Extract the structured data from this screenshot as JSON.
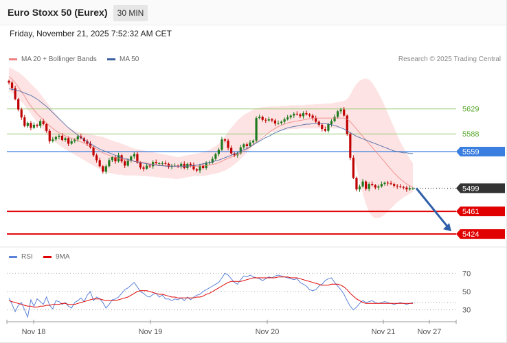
{
  "header": {
    "title": "Euro Stoxx 50 (Eurex)",
    "timeframe": "30 MIN",
    "datetime": "Friday, November 21, 2025 7:52:32 AM CET"
  },
  "legend": {
    "ma20": "MA 20 + Bollinger Bands",
    "ma50": "MA 50",
    "credit": "Research © 2025 Trading Central"
  },
  "rsi_legend": {
    "rsi": "RSI",
    "ma9": "9MA"
  },
  "colors": {
    "ma20": "#f08080",
    "bands_fill": "#fde0e0",
    "ma50": "#3a5fa0",
    "candle_up": "#1f7a1f",
    "candle_down": "#c00000",
    "resistance": "#7ab648",
    "pivot": "#3a7ee0",
    "support": "#e00000",
    "last_price": "#333333",
    "forecast_arrow": "#2f5fa8",
    "rsi": "#5a82d8",
    "rsi_ma": "#e00000"
  },
  "chart_data": {
    "type": "candlestick",
    "price_ylim": [
      5405,
      5695
    ],
    "x_ticks": [
      "Nov 18",
      "Nov 19",
      "Nov 20",
      "Nov 21",
      "Nov 27"
    ],
    "levels": [
      {
        "label": "5629",
        "value": 5629,
        "kind": "resistance"
      },
      {
        "label": "5588",
        "value": 5588,
        "kind": "resistance"
      },
      {
        "label": "5559",
        "value": 5559,
        "kind": "pivot"
      },
      {
        "label": "5499",
        "value": 5499,
        "kind": "last"
      },
      {
        "label": "5461",
        "value": 5461,
        "kind": "support"
      },
      {
        "label": "5424",
        "value": 5424,
        "kind": "support"
      }
    ],
    "forecast": {
      "from_value": 5499,
      "to_value": 5424
    },
    "close": [
      5672,
      5663,
      5645,
      5628,
      5615,
      5601,
      5606,
      5598,
      5603,
      5601,
      5609,
      5604,
      5593,
      5576,
      5579,
      5583,
      5585,
      5578,
      5581,
      5572,
      5576,
      5579,
      5584,
      5581,
      5576,
      5572,
      5566,
      5553,
      5545,
      5535,
      5526,
      5535,
      5545,
      5550,
      5543,
      5553,
      5543,
      5536,
      5544,
      5551,
      5555,
      5541,
      5533,
      5531,
      5536,
      5535,
      5542,
      5540,
      5540,
      5540,
      5539,
      5534,
      5536,
      5536,
      5535,
      5539,
      5532,
      5539,
      5537,
      5530,
      5528,
      5536,
      5532,
      5541,
      5541,
      5547,
      5555,
      5562,
      5579,
      5577,
      5565,
      5556,
      5553,
      5556,
      5566,
      5571,
      5568,
      5574,
      5577,
      5614,
      5616,
      5611,
      5610,
      5612,
      5610,
      5605,
      5606,
      5608,
      5612,
      5615,
      5618,
      5621,
      5620,
      5617,
      5622,
      5620,
      5618,
      5614,
      5608,
      5603,
      5596,
      5593,
      5604,
      5609,
      5616,
      5625,
      5628,
      5618,
      5588,
      5549,
      5516,
      5497,
      5502,
      5510,
      5498,
      5506,
      5504,
      5500,
      5502,
      5506,
      5508,
      5507,
      5506,
      5503,
      5502,
      5501,
      5500,
      5497,
      5499,
      5499
    ],
    "ma20": [
      5682,
      5678,
      5672,
      5665,
      5657,
      5650,
      5641,
      5634,
      5627,
      5621,
      5616,
      5611,
      5606,
      5601,
      5597,
      5593,
      5590,
      5587,
      5585,
      5582,
      5581,
      5579,
      5577,
      5575,
      5573,
      5570,
      5568,
      5566,
      5563,
      5560,
      5557,
      5555,
      5553,
      5551,
      5549,
      5548,
      5547,
      5546,
      5545,
      5544,
      5543,
      5543,
      5542,
      5541,
      5540,
      5539,
      5538,
      5538,
      5537,
      5537,
      5536,
      5536,
      5535,
      5535,
      5535,
      5535,
      5535,
      5535,
      5535,
      5535,
      5535,
      5535,
      5536,
      5536,
      5537,
      5538,
      5539,
      5541,
      5543,
      5546,
      5548,
      5550,
      5552,
      5554,
      5557,
      5560,
      5563,
      5566,
      5570,
      5574,
      5578,
      5582,
      5586,
      5590,
      5594,
      5597,
      5600,
      5602,
      5604,
      5606,
      5607,
      5608,
      5609,
      5610,
      5611,
      5612,
      5613,
      5614,
      5614,
      5614,
      5614,
      5614,
      5614,
      5614,
      5614,
      5614,
      5614,
      5614,
      5612,
      5608,
      5602,
      5596,
      5590,
      5584,
      5578,
      5572,
      5566,
      5560,
      5554,
      5548,
      5542,
      5536,
      5530,
      5524,
      5519,
      5514,
      5510,
      5506,
      5503,
      5501
    ],
    "bb_upper": [
      5697,
      5695,
      5692,
      5689,
      5685,
      5681,
      5676,
      5670,
      5665,
      5660,
      5654,
      5647,
      5640,
      5634,
      5627,
      5620,
      5614,
      5608,
      5603,
      5599,
      5596,
      5593,
      5591,
      5590,
      5589,
      5588,
      5587,
      5586,
      5585,
      5584,
      5583,
      5581,
      5579,
      5577,
      5575,
      5574,
      5572,
      5570,
      5568,
      5566,
      5564,
      5563,
      5562,
      5561,
      5560,
      5559,
      5558,
      5557,
      5556,
      5555,
      5554,
      5553,
      5552,
      5551,
      5550,
      5551,
      5552,
      5553,
      5554,
      5555,
      5556,
      5557,
      5558,
      5560,
      5562,
      5565,
      5568,
      5572,
      5578,
      5584,
      5592,
      5598,
      5604,
      5610,
      5615,
      5619,
      5622,
      5625,
      5628,
      5630,
      5631,
      5632,
      5632,
      5633,
      5633,
      5633,
      5633,
      5634,
      5634,
      5634,
      5635,
      5635,
      5635,
      5635,
      5635,
      5636,
      5636,
      5636,
      5637,
      5637,
      5637,
      5638,
      5638,
      5638,
      5639,
      5640,
      5641,
      5642,
      5645,
      5652,
      5662,
      5670,
      5675,
      5678,
      5679,
      5677,
      5672,
      5664,
      5655,
      5645,
      5634,
      5622,
      5610,
      5598,
      5586,
      5575,
      5566,
      5556,
      5548,
      5540
    ],
    "bb_lower": [
      5658,
      5655,
      5651,
      5646,
      5641,
      5635,
      5628,
      5621,
      5614,
      5607,
      5600,
      5594,
      5588,
      5583,
      5578,
      5574,
      5570,
      5566,
      5563,
      5560,
      5557,
      5554,
      5551,
      5548,
      5545,
      5542,
      5539,
      5536,
      5533,
      5530,
      5527,
      5525,
      5524,
      5523,
      5522,
      5521,
      5521,
      5520,
      5520,
      5520,
      5520,
      5520,
      5519,
      5519,
      5519,
      5518,
      5518,
      5517,
      5517,
      5516,
      5516,
      5515,
      5515,
      5514,
      5514,
      5515,
      5516,
      5517,
      5518,
      5519,
      5519,
      5519,
      5519,
      5520,
      5521,
      5522,
      5523,
      5524,
      5526,
      5528,
      5531,
      5534,
      5538,
      5542,
      5547,
      5552,
      5557,
      5563,
      5569,
      5575,
      5580,
      5585,
      5588,
      5590,
      5591,
      5592,
      5593,
      5594,
      5595,
      5595,
      5596,
      5596,
      5596,
      5597,
      5597,
      5597,
      5597,
      5597,
      5597,
      5597,
      5597,
      5597,
      5597,
      5597,
      5597,
      5597,
      5597,
      5597,
      5590,
      5575,
      5555,
      5532,
      5510,
      5490,
      5473,
      5460,
      5453,
      5450,
      5450,
      5452,
      5456,
      5461,
      5466,
      5471,
      5476,
      5480,
      5484,
      5487,
      5490,
      5493
    ],
    "ma50": [
      5662,
      5661,
      5660,
      5659,
      5657,
      5655,
      5653,
      5651,
      5648,
      5645,
      5641,
      5637,
      5633,
      5628,
      5623,
      5618,
      5613,
      5608,
      5603,
      5598,
      5594,
      5590,
      5586,
      5582,
      5579,
      5575,
      5572,
      5569,
      5566,
      5563,
      5561,
      5559,
      5557,
      5555,
      5553,
      5551,
      5549,
      5548,
      5546,
      5545,
      5543,
      5542,
      5541,
      5540,
      5539,
      5538,
      5537,
      5537,
      5536,
      5536,
      5535,
      5535,
      5535,
      5535,
      5535,
      5535,
      5535,
      5535,
      5536,
      5536,
      5537,
      5538,
      5539,
      5540,
      5541,
      5542,
      5544,
      5545,
      5547,
      5549,
      5551,
      5553,
      5555,
      5557,
      5560,
      5562,
      5564,
      5567,
      5570,
      5573,
      5576,
      5579,
      5582,
      5584,
      5587,
      5590,
      5592,
      5594,
      5596,
      5598,
      5599,
      5600,
      5601,
      5602,
      5603,
      5604,
      5604,
      5605,
      5605,
      5605,
      5605,
      5605,
      5604,
      5603,
      5602,
      5600,
      5598,
      5596,
      5593,
      5590,
      5587,
      5584,
      5582,
      5580,
      5578,
      5576,
      5574,
      5572,
      5570,
      5568,
      5566,
      5564,
      5562,
      5560,
      5559,
      5558,
      5557,
      5557,
      5556,
      5556
    ],
    "rsi": {
      "ylim": [
        20,
        80
      ],
      "ticks": [
        70,
        50,
        30
      ],
      "rsi": [
        43,
        36,
        28,
        35,
        38,
        30,
        22,
        41,
        34,
        42,
        39,
        36,
        44,
        35,
        31,
        40,
        39,
        36,
        38,
        34,
        32,
        38,
        40,
        43,
        39,
        46,
        50,
        40,
        44,
        42,
        38,
        32,
        36,
        41,
        42,
        44,
        48,
        52,
        54,
        57,
        60,
        55,
        50,
        48,
        45,
        44,
        47,
        48,
        44,
        46,
        42,
        42,
        40,
        42,
        41,
        43,
        40,
        44,
        41,
        44,
        46,
        47,
        50,
        52,
        54,
        56,
        58,
        60,
        65,
        70,
        68,
        64,
        60,
        58,
        63,
        67,
        66,
        68,
        66,
        65,
        64,
        62,
        64,
        66,
        65,
        67,
        68,
        67,
        66,
        65,
        64,
        63,
        64,
        60,
        58,
        56,
        52,
        51,
        52,
        56,
        58,
        62,
        64,
        65,
        60,
        56,
        52,
        47,
        40,
        34,
        30,
        33,
        37,
        40,
        38,
        39,
        40,
        38,
        37,
        38,
        39,
        38,
        37,
        36,
        37,
        38,
        37,
        36,
        37,
        38
      ],
      "ma9": [
        40,
        39,
        38,
        37,
        36,
        35,
        34,
        34,
        33,
        33,
        34,
        34,
        35,
        35,
        36,
        36,
        36,
        37,
        37,
        36,
        36,
        36,
        37,
        38,
        39,
        40,
        41,
        42,
        42,
        42,
        41,
        40,
        40,
        40,
        40,
        41,
        42,
        43,
        44,
        46,
        48,
        50,
        51,
        51,
        51,
        50,
        49,
        48,
        47,
        47,
        46,
        45,
        44,
        44,
        43,
        43,
        43,
        43,
        43,
        43,
        44,
        44,
        45,
        47,
        48,
        50,
        52,
        54,
        56,
        58,
        60,
        61,
        61,
        61,
        61,
        62,
        63,
        64,
        65,
        65,
        65,
        65,
        65,
        65,
        65,
        65,
        66,
        66,
        66,
        66,
        65,
        65,
        65,
        64,
        63,
        62,
        61,
        60,
        59,
        58,
        57,
        57,
        57,
        58,
        58,
        58,
        57,
        55,
        52,
        48,
        45,
        42,
        40,
        38,
        37,
        37,
        37,
        37,
        37,
        37,
        37,
        37,
        37,
        37,
        37,
        37,
        37,
        37,
        37,
        37
      ]
    }
  }
}
